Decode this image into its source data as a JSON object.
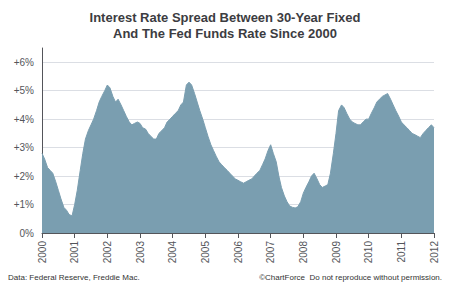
{
  "chart_data": {
    "type": "area",
    "title": "Interest Rate Spread Between 30-Year Fixed\nAnd The Fed Funds Rate Since 2000",
    "annotations": [
      "Data: Federal Reserve, Freddie Mac.",
      "©ChartForce  Do not reproduce without permission."
    ],
    "color": "#7a9eb0",
    "xlim": [
      2000,
      2012
    ],
    "xticks": [
      2000,
      2001,
      2002,
      2003,
      2004,
      2005,
      2006,
      2007,
      2008,
      2009,
      2010,
      2011,
      2012
    ],
    "ylim": [
      0,
      6.5
    ],
    "yticks": [
      {
        "value": 0,
        "label": "0%"
      },
      {
        "value": 1,
        "label": "+1%"
      },
      {
        "value": 2,
        "label": "+2%"
      },
      {
        "value": 3,
        "label": "+3%"
      },
      {
        "value": 4,
        "label": "+4%"
      },
      {
        "value": 5,
        "label": "+5%"
      },
      {
        "value": 6,
        "label": "+6%"
      }
    ],
    "grid": true,
    "x": [
      2000.0,
      2000.08,
      2000.17,
      2000.25,
      2000.33,
      2000.42,
      2000.5,
      2000.58,
      2000.67,
      2000.75,
      2000.83,
      2000.92,
      2001.0,
      2001.08,
      2001.17,
      2001.25,
      2001.33,
      2001.42,
      2001.5,
      2001.58,
      2001.67,
      2001.75,
      2001.83,
      2001.92,
      2002.0,
      2002.08,
      2002.17,
      2002.25,
      2002.33,
      2002.42,
      2002.5,
      2002.58,
      2002.67,
      2002.75,
      2002.83,
      2002.92,
      2003.0,
      2003.08,
      2003.17,
      2003.25,
      2003.33,
      2003.42,
      2003.5,
      2003.58,
      2003.67,
      2003.75,
      2003.83,
      2003.92,
      2004.0,
      2004.08,
      2004.17,
      2004.25,
      2004.33,
      2004.42,
      2004.5,
      2004.58,
      2004.67,
      2004.75,
      2004.83,
      2004.92,
      2005.0,
      2005.08,
      2005.17,
      2005.25,
      2005.33,
      2005.42,
      2005.5,
      2005.58,
      2005.67,
      2005.75,
      2005.83,
      2005.92,
      2006.0,
      2006.08,
      2006.17,
      2006.25,
      2006.33,
      2006.42,
      2006.5,
      2006.58,
      2006.67,
      2006.75,
      2006.83,
      2006.92,
      2007.0,
      2007.08,
      2007.17,
      2007.25,
      2007.33,
      2007.42,
      2007.5,
      2007.58,
      2007.67,
      2007.75,
      2007.83,
      2007.92,
      2008.0,
      2008.08,
      2008.17,
      2008.25,
      2008.33,
      2008.42,
      2008.5,
      2008.58,
      2008.67,
      2008.75,
      2008.83,
      2008.92,
      2009.0,
      2009.08,
      2009.17,
      2009.25,
      2009.33,
      2009.42,
      2009.5,
      2009.58,
      2009.67,
      2009.75,
      2009.83,
      2009.92,
      2010.0,
      2010.08,
      2010.17,
      2010.25,
      2010.33,
      2010.42,
      2010.5,
      2010.58,
      2010.67,
      2010.75,
      2010.83,
      2010.92,
      2011.0,
      2011.08,
      2011.17,
      2011.25,
      2011.33,
      2011.42,
      2011.5,
      2011.58,
      2011.67,
      2011.75,
      2011.83,
      2011.92,
      2012.0
    ],
    "values": [
      2.8,
      2.6,
      2.3,
      2.2,
      2.1,
      1.8,
      1.5,
      1.2,
      0.9,
      0.8,
      0.65,
      0.6,
      1.0,
      1.5,
      2.2,
      2.8,
      3.3,
      3.6,
      3.8,
      4.0,
      4.3,
      4.6,
      4.8,
      5.0,
      5.2,
      5.1,
      4.8,
      4.6,
      4.7,
      4.5,
      4.3,
      4.1,
      3.9,
      3.8,
      3.85,
      3.9,
      3.85,
      3.7,
      3.65,
      3.5,
      3.4,
      3.3,
      3.3,
      3.5,
      3.6,
      3.7,
      3.9,
      4.0,
      4.1,
      4.2,
      4.3,
      4.5,
      4.6,
      5.2,
      5.3,
      5.2,
      4.9,
      4.6,
      4.3,
      4.0,
      3.7,
      3.4,
      3.1,
      2.9,
      2.7,
      2.5,
      2.4,
      2.3,
      2.2,
      2.1,
      2.0,
      1.9,
      1.85,
      1.8,
      1.75,
      1.8,
      1.85,
      1.9,
      2.0,
      2.1,
      2.2,
      2.4,
      2.6,
      2.9,
      3.1,
      2.8,
      2.5,
      2.0,
      1.6,
      1.3,
      1.1,
      0.95,
      0.9,
      0.88,
      0.92,
      1.1,
      1.4,
      1.6,
      1.8,
      2.0,
      2.1,
      1.9,
      1.7,
      1.6,
      1.65,
      1.7,
      2.1,
      2.8,
      3.5,
      4.3,
      4.5,
      4.4,
      4.2,
      4.0,
      3.9,
      3.85,
      3.8,
      3.8,
      3.9,
      4.0,
      4.0,
      4.2,
      4.4,
      4.6,
      4.7,
      4.8,
      4.85,
      4.9,
      4.7,
      4.5,
      4.3,
      4.1,
      3.9,
      3.8,
      3.7,
      3.6,
      3.5,
      3.45,
      3.4,
      3.35,
      3.5,
      3.6,
      3.7,
      3.8,
      3.7
    ]
  }
}
